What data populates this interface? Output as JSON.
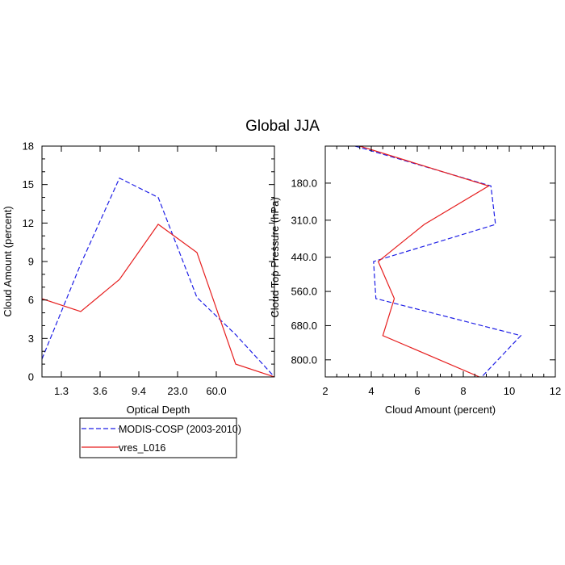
{
  "title": "Global JJA",
  "colors": {
    "obs": "#1f1fe6",
    "model": "#e61f1f",
    "axis": "#000000"
  },
  "legend": {
    "placement": "bottom-left",
    "entries": [
      "MODIS-COSP (2003-2010)",
      "vres_L016"
    ]
  },
  "chart_data": [
    {
      "type": "line",
      "title": "",
      "xlabel": "Optical Depth",
      "ylabel": "Cloud Amount (percent)",
      "xlim": [
        0,
        6
      ],
      "ylim": [
        0,
        18
      ],
      "xticks": [
        {
          "v": 0.5,
          "label": "1.3"
        },
        {
          "v": 1.5,
          "label": "3.6"
        },
        {
          "v": 2.5,
          "label": "9.4"
        },
        {
          "v": 3.5,
          "label": "23.0"
        },
        {
          "v": 4.5,
          "label": "60.0"
        }
      ],
      "yticks": [
        0,
        3,
        6,
        9,
        12,
        15,
        18
      ],
      "ytick_labels": [
        "0",
        "3",
        "6",
        "9",
        "12",
        "15",
        "18"
      ],
      "series": [
        {
          "name": "MODIS-COSP (2003-2010)",
          "style": "dashed",
          "color": "#1f1fe6",
          "x": [
            0,
            1,
            2,
            3,
            4,
            5,
            6
          ],
          "y": [
            1.4,
            8.8,
            15.5,
            14.0,
            6.2,
            3.3,
            0.0
          ]
        },
        {
          "name": "vres_L016",
          "style": "solid",
          "color": "#e61f1f",
          "x": [
            0,
            1,
            2,
            3,
            4,
            5,
            6
          ],
          "y": [
            6.1,
            5.1,
            7.6,
            11.9,
            9.7,
            1.0,
            0.0
          ]
        }
      ]
    },
    {
      "type": "line",
      "title": "",
      "xlabel": "Cloud Amount (percent)",
      "ylabel": "Cloud Top Pressure (hPa)",
      "xlim": [
        2,
        12
      ],
      "ylim": [
        50,
        860
      ],
      "y_inverted": true,
      "xticks": [
        2,
        4,
        6,
        8,
        10,
        12
      ],
      "xtick_labels": [
        "2",
        "4",
        "6",
        "8",
        "10",
        "12"
      ],
      "yticks": [
        180,
        310,
        440,
        560,
        680,
        800
      ],
      "ytick_labels": [
        "180.0",
        "310.0",
        "440.0",
        "560.0",
        "680.0",
        "800.0"
      ],
      "series": [
        {
          "name": "MODIS-COSP (2003-2010)",
          "style": "dashed",
          "color": "#1f1fe6",
          "x": [
            3.3,
            9.2,
            9.4,
            4.1,
            4.2,
            10.5,
            8.8
          ],
          "y": [
            50,
            190,
            325,
            455,
            585,
            715,
            860
          ]
        },
        {
          "name": "vres_L016",
          "style": "solid",
          "color": "#e61f1f",
          "x": [
            3.5,
            9.1,
            6.3,
            4.3,
            5.0,
            4.5,
            8.7
          ],
          "y": [
            50,
            190,
            325,
            455,
            585,
            715,
            860
          ]
        }
      ]
    }
  ]
}
